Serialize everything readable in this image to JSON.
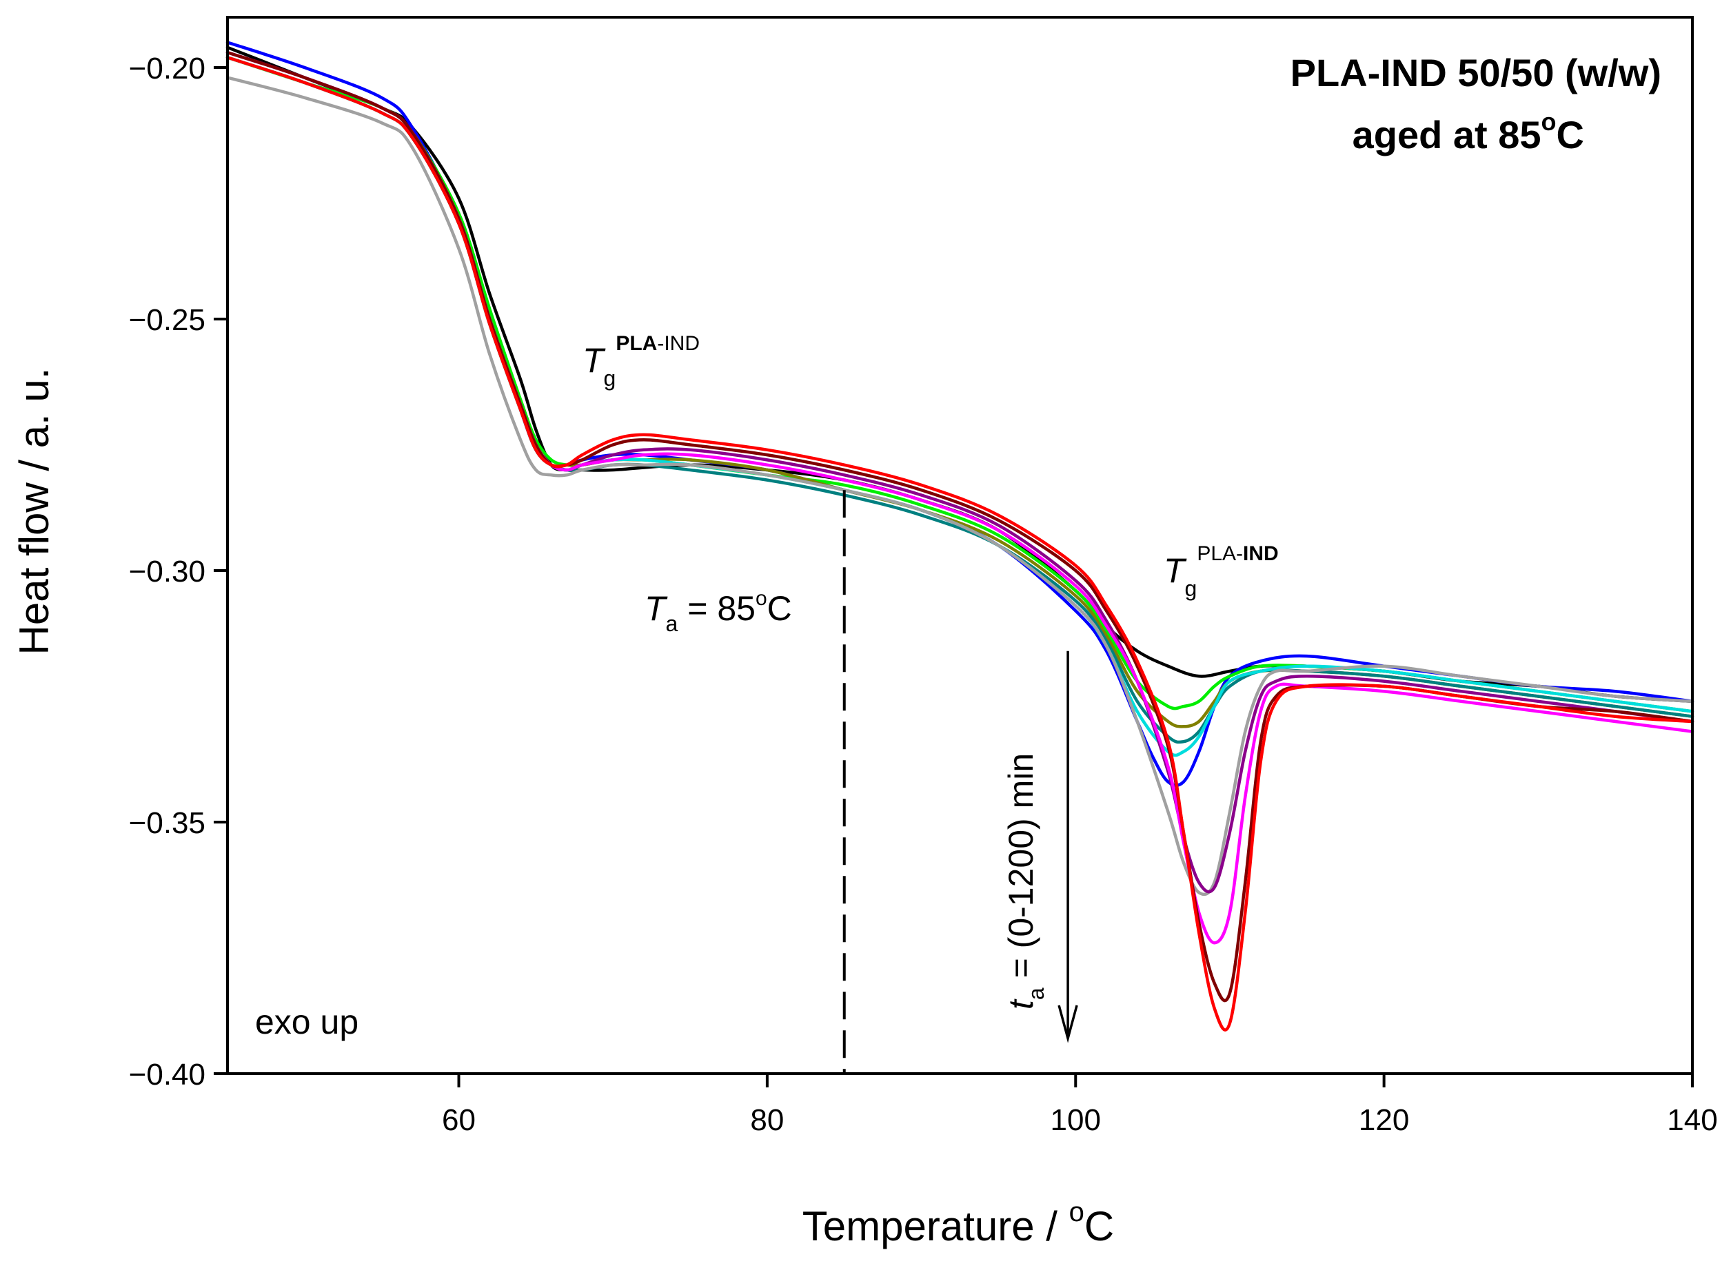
{
  "chart_data": {
    "type": "line",
    "title": "PLA-IND 50/50 (w/w)",
    "subtitle": "aged at 85",
    "subtitle_sup": "o",
    "subtitle_unit": "C",
    "xlabel": "Temperature / ",
    "xlabel_sup": "o",
    "xlabel_unit": "C",
    "ylabel": "Heat flow / a. u.",
    "xlim": [
      45,
      140
    ],
    "ylim": [
      -0.4,
      -0.19
    ],
    "xticks": [
      60,
      80,
      100,
      120,
      140
    ],
    "yticks": [
      -0.2,
      -0.25,
      -0.3,
      -0.35,
      -0.4
    ],
    "ytick_labels": [
      "−0.20",
      "−0.25",
      "−0.30",
      "−0.35",
      "−0.40"
    ],
    "annotations": {
      "exo": "exo up",
      "tg1_main": "T",
      "tg1_sub": "g",
      "tg1_sup_bold": "PLA",
      "tg1_sup_rest": "-IND",
      "tg2_main": "T",
      "tg2_sub": "g",
      "tg2_sup_rest": "PLA-",
      "tg2_sup_bold": "IND",
      "ta_main": "T",
      "ta_sub": "a",
      "ta_rest": " = 85",
      "ta_sup": "o",
      "ta_unit": "C",
      "ta_value": 85,
      "time_main": "t",
      "time_sub": "a",
      "time_rest": " = (0-1200) min",
      "arrow_from": -0.316,
      "arrow_to": -0.393,
      "arrow_x": 99.5
    },
    "series": [
      {
        "name": "black",
        "color": "#000000",
        "x": [
          45,
          50,
          55,
          57,
          60,
          62,
          64,
          65,
          66,
          67,
          68,
          70,
          75,
          80,
          85,
          90,
          95,
          100,
          102,
          104,
          106,
          108,
          110,
          112,
          115,
          120,
          125,
          130,
          135,
          140
        ],
        "y": [
          -0.196,
          -0.202,
          -0.208,
          -0.212,
          -0.226,
          -0.245,
          -0.262,
          -0.272,
          -0.279,
          -0.28,
          -0.28,
          -0.28,
          -0.279,
          -0.28,
          -0.282,
          -0.286,
          -0.292,
          -0.304,
          -0.311,
          -0.316,
          -0.319,
          -0.321,
          -0.32,
          -0.319,
          -0.319,
          -0.32,
          -0.322,
          -0.323,
          -0.325,
          -0.326
        ]
      },
      {
        "name": "blue",
        "color": "#0000ff",
        "x": [
          45,
          50,
          55,
          57,
          60,
          62,
          64,
          65,
          66,
          67,
          68,
          70,
          72,
          75,
          80,
          85,
          90,
          95,
          100,
          102,
          104,
          105,
          106,
          107,
          108,
          109,
          110,
          112,
          115,
          120,
          125,
          130,
          135,
          140
        ],
        "y": [
          -0.195,
          -0.2,
          -0.206,
          -0.212,
          -0.23,
          -0.25,
          -0.268,
          -0.276,
          -0.279,
          -0.279,
          -0.278,
          -0.277,
          -0.277,
          -0.278,
          -0.28,
          -0.284,
          -0.288,
          -0.295,
          -0.308,
          -0.316,
          -0.33,
          -0.337,
          -0.342,
          -0.342,
          -0.336,
          -0.327,
          -0.321,
          -0.318,
          -0.317,
          -0.319,
          -0.321,
          -0.323,
          -0.324,
          -0.326
        ]
      },
      {
        "name": "green",
        "color": "#00ee00",
        "x": [
          45,
          50,
          55,
          57,
          60,
          62,
          64,
          65,
          66,
          67,
          68,
          70,
          72,
          75,
          80,
          85,
          90,
          95,
          100,
          102,
          104,
          106,
          107,
          108,
          109,
          110,
          112,
          115,
          120,
          125,
          130,
          135,
          140
        ],
        "y": [
          -0.198,
          -0.203,
          -0.208,
          -0.213,
          -0.229,
          -0.248,
          -0.266,
          -0.274,
          -0.278,
          -0.279,
          -0.279,
          -0.278,
          -0.278,
          -0.279,
          -0.281,
          -0.283,
          -0.287,
          -0.293,
          -0.304,
          -0.312,
          -0.322,
          -0.327,
          -0.327,
          -0.326,
          -0.323,
          -0.321,
          -0.319,
          -0.319,
          -0.32,
          -0.322,
          -0.324,
          -0.326,
          -0.328
        ]
      },
      {
        "name": "olive",
        "color": "#808000",
        "x": [
          45,
          50,
          55,
          57,
          60,
          62,
          64,
          65,
          66,
          67,
          68,
          70,
          72,
          75,
          80,
          85,
          90,
          95,
          100,
          102,
          104,
          106,
          107,
          108,
          109,
          110,
          112,
          115,
          120,
          125,
          130,
          135,
          140
        ],
        "y": [
          -0.198,
          -0.203,
          -0.209,
          -0.214,
          -0.231,
          -0.251,
          -0.268,
          -0.276,
          -0.279,
          -0.279,
          -0.279,
          -0.278,
          -0.278,
          -0.278,
          -0.28,
          -0.284,
          -0.288,
          -0.294,
          -0.305,
          -0.313,
          -0.324,
          -0.33,
          -0.331,
          -0.33,
          -0.326,
          -0.322,
          -0.32,
          -0.32,
          -0.321,
          -0.323,
          -0.325,
          -0.327,
          -0.329
        ]
      },
      {
        "name": "teal",
        "color": "#008080",
        "x": [
          45,
          50,
          55,
          57,
          60,
          62,
          64,
          65,
          66,
          67,
          68,
          70,
          72,
          75,
          80,
          85,
          90,
          95,
          100,
          102,
          104,
          106,
          107,
          108,
          109,
          110,
          112,
          115,
          120,
          125,
          130,
          135,
          140
        ],
        "y": [
          -0.198,
          -0.203,
          -0.209,
          -0.214,
          -0.231,
          -0.251,
          -0.268,
          -0.276,
          -0.279,
          -0.28,
          -0.28,
          -0.279,
          -0.279,
          -0.28,
          -0.282,
          -0.285,
          -0.289,
          -0.295,
          -0.306,
          -0.314,
          -0.326,
          -0.333,
          -0.334,
          -0.332,
          -0.327,
          -0.323,
          -0.32,
          -0.32,
          -0.321,
          -0.323,
          -0.325,
          -0.327,
          -0.329
        ]
      },
      {
        "name": "cyan",
        "color": "#00dddd",
        "x": [
          45,
          50,
          55,
          57,
          60,
          62,
          64,
          65,
          66,
          67,
          68,
          70,
          72,
          75,
          80,
          85,
          90,
          95,
          100,
          102,
          104,
          106,
          107,
          108,
          109,
          110,
          112,
          115,
          120,
          125,
          130,
          135,
          140
        ],
        "y": [
          -0.198,
          -0.203,
          -0.209,
          -0.214,
          -0.231,
          -0.251,
          -0.268,
          -0.276,
          -0.279,
          -0.28,
          -0.279,
          -0.278,
          -0.278,
          -0.279,
          -0.281,
          -0.284,
          -0.288,
          -0.295,
          -0.307,
          -0.315,
          -0.328,
          -0.336,
          -0.336,
          -0.333,
          -0.327,
          -0.322,
          -0.32,
          -0.319,
          -0.32,
          -0.322,
          -0.324,
          -0.326,
          -0.328
        ]
      },
      {
        "name": "gray",
        "color": "#a0a0a0",
        "x": [
          45,
          50,
          55,
          57,
          60,
          62,
          64,
          65,
          66,
          67,
          68,
          70,
          72,
          75,
          80,
          85,
          90,
          95,
          100,
          102,
          104,
          106,
          107,
          108,
          109,
          110,
          111,
          112,
          113,
          115,
          120,
          125,
          130,
          135,
          140
        ],
        "y": [
          -0.202,
          -0.206,
          -0.211,
          -0.216,
          -0.236,
          -0.257,
          -0.274,
          -0.28,
          -0.281,
          -0.281,
          -0.28,
          -0.279,
          -0.279,
          -0.279,
          -0.281,
          -0.284,
          -0.288,
          -0.295,
          -0.307,
          -0.315,
          -0.33,
          -0.348,
          -0.358,
          -0.364,
          -0.362,
          -0.348,
          -0.332,
          -0.323,
          -0.32,
          -0.32,
          -0.319,
          -0.321,
          -0.323,
          -0.325,
          -0.326
        ]
      },
      {
        "name": "purple",
        "color": "#8b008b",
        "x": [
          45,
          50,
          55,
          57,
          60,
          62,
          64,
          65,
          66,
          67,
          68,
          70,
          72,
          75,
          80,
          85,
          90,
          95,
          100,
          102,
          104,
          106,
          107,
          108,
          109,
          110,
          111,
          112,
          113,
          115,
          120,
          125,
          130,
          135,
          140
        ],
        "y": [
          -0.197,
          -0.202,
          -0.208,
          -0.213,
          -0.23,
          -0.25,
          -0.267,
          -0.275,
          -0.279,
          -0.28,
          -0.279,
          -0.277,
          -0.276,
          -0.276,
          -0.278,
          -0.281,
          -0.285,
          -0.291,
          -0.302,
          -0.31,
          -0.322,
          -0.34,
          -0.353,
          -0.362,
          -0.363,
          -0.352,
          -0.336,
          -0.325,
          -0.322,
          -0.321,
          -0.322,
          -0.324,
          -0.326,
          -0.328,
          -0.33
        ]
      },
      {
        "name": "magenta",
        "color": "#ff00ff",
        "x": [
          45,
          50,
          55,
          57,
          60,
          62,
          64,
          65,
          66,
          67,
          68,
          70,
          72,
          75,
          80,
          85,
          90,
          95,
          100,
          102,
          104,
          106,
          107,
          108,
          109,
          110,
          111,
          112,
          113,
          115,
          120,
          125,
          130,
          135,
          140
        ],
        "y": [
          -0.197,
          -0.202,
          -0.208,
          -0.213,
          -0.23,
          -0.25,
          -0.267,
          -0.275,
          -0.279,
          -0.28,
          -0.279,
          -0.278,
          -0.277,
          -0.277,
          -0.279,
          -0.282,
          -0.286,
          -0.292,
          -0.303,
          -0.311,
          -0.322,
          -0.339,
          -0.354,
          -0.368,
          -0.374,
          -0.368,
          -0.345,
          -0.328,
          -0.323,
          -0.323,
          -0.324,
          -0.326,
          -0.328,
          -0.33,
          -0.332
        ]
      },
      {
        "name": "darkred",
        "color": "#800000",
        "x": [
          45,
          50,
          55,
          57,
          60,
          62,
          64,
          65,
          66,
          67,
          68,
          70,
          72,
          75,
          80,
          85,
          90,
          95,
          100,
          102,
          104,
          106,
          107,
          108,
          109,
          110,
          111,
          112,
          113,
          115,
          120,
          125,
          130,
          135,
          140
        ],
        "y": [
          -0.197,
          -0.202,
          -0.208,
          -0.213,
          -0.23,
          -0.25,
          -0.267,
          -0.275,
          -0.279,
          -0.279,
          -0.278,
          -0.275,
          -0.274,
          -0.275,
          -0.277,
          -0.28,
          -0.284,
          -0.29,
          -0.3,
          -0.308,
          -0.319,
          -0.335,
          -0.352,
          -0.37,
          -0.382,
          -0.384,
          -0.362,
          -0.334,
          -0.325,
          -0.323,
          -0.323,
          -0.325,
          -0.327,
          -0.328,
          -0.33
        ]
      },
      {
        "name": "red",
        "color": "#ff0000",
        "x": [
          45,
          50,
          55,
          57,
          60,
          62,
          64,
          65,
          66,
          67,
          68,
          70,
          72,
          75,
          80,
          85,
          90,
          95,
          100,
          102,
          104,
          106,
          107,
          108,
          109,
          110,
          111,
          112,
          113,
          115,
          120,
          125,
          130,
          135,
          140
        ],
        "y": [
          -0.198,
          -0.203,
          -0.209,
          -0.214,
          -0.231,
          -0.251,
          -0.268,
          -0.276,
          -0.279,
          -0.279,
          -0.277,
          -0.274,
          -0.273,
          -0.274,
          -0.276,
          -0.279,
          -0.283,
          -0.289,
          -0.299,
          -0.307,
          -0.318,
          -0.334,
          -0.352,
          -0.372,
          -0.387,
          -0.39,
          -0.368,
          -0.338,
          -0.326,
          -0.323,
          -0.323,
          -0.325,
          -0.327,
          -0.329,
          -0.33
        ]
      }
    ]
  }
}
